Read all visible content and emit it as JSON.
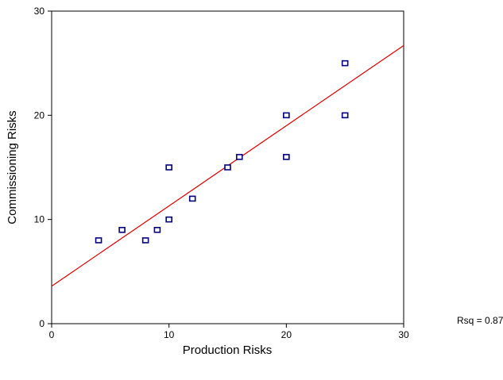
{
  "chart_data": {
    "type": "scatter",
    "xlabel": "Production Risks",
    "ylabel": "Commissioning Risks",
    "xlim": [
      0,
      30
    ],
    "ylim": [
      0,
      30
    ],
    "xticks": [
      0,
      10,
      20,
      30
    ],
    "yticks": [
      0,
      10,
      20,
      30
    ],
    "grid": false,
    "points": [
      {
        "x": 4,
        "y": 8
      },
      {
        "x": 6,
        "y": 9
      },
      {
        "x": 8,
        "y": 8
      },
      {
        "x": 9,
        "y": 9
      },
      {
        "x": 10,
        "y": 10
      },
      {
        "x": 10,
        "y": 15
      },
      {
        "x": 12,
        "y": 12
      },
      {
        "x": 15,
        "y": 15
      },
      {
        "x": 16,
        "y": 16
      },
      {
        "x": 20,
        "y": 20
      },
      {
        "x": 20,
        "y": 16
      },
      {
        "x": 25,
        "y": 25
      },
      {
        "x": 25,
        "y": 20
      }
    ],
    "fit_line": {
      "x": [
        0,
        30
      ],
      "y": [
        3.6,
        26.7
      ],
      "color": "#e00000"
    },
    "marker_color": "#000080",
    "annotation": "Rsq = 0.8786"
  }
}
